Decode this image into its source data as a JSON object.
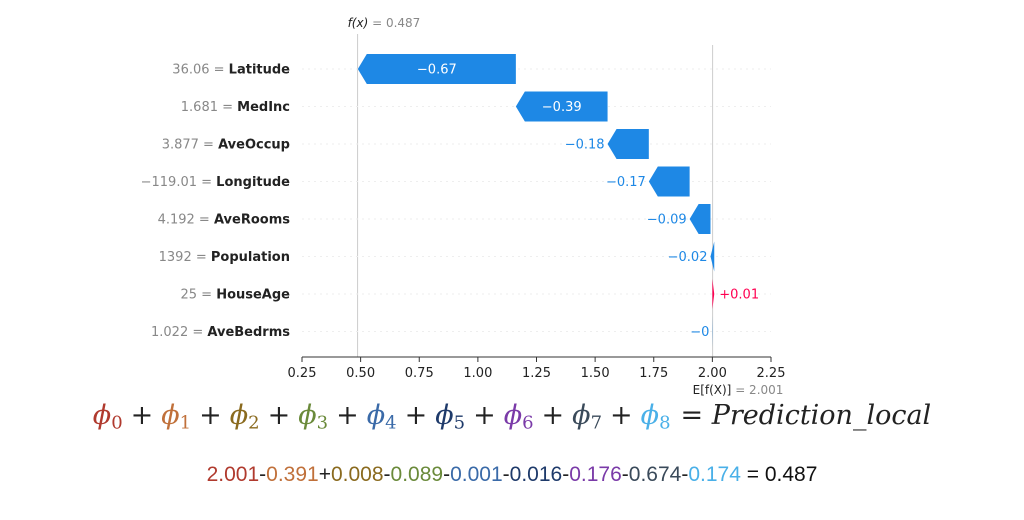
{
  "chart_data": {
    "type": "waterfall",
    "xlim": [
      0.25,
      2.25
    ],
    "xticks": [
      "0.25",
      "0.50",
      "0.75",
      "1.00",
      "1.25",
      "1.50",
      "1.75",
      "2.00",
      "2.25"
    ],
    "base_value": 2.001,
    "base_label": "E[f(X)]",
    "base_value_label": "= 2.001",
    "output_value": 0.487,
    "output_label": "f(x)",
    "output_value_label": "= 0.487",
    "features": [
      {
        "label": "36.06 = Latitude",
        "feature": "Latitude",
        "value": -0.674,
        "text": "−0.67"
      },
      {
        "label": "1.681 = MedInc",
        "feature": "MedInc",
        "value": -0.391,
        "text": "−0.39"
      },
      {
        "label": "3.877 = AveOccup",
        "feature": "AveOccup",
        "value": -0.176,
        "text": "−0.18"
      },
      {
        "label": "−119.01 = Longitude",
        "feature": "Longitude",
        "value": -0.174,
        "text": "−0.17"
      },
      {
        "label": "4.192 = AveRooms",
        "feature": "AveRooms",
        "value": -0.089,
        "text": "−0.09"
      },
      {
        "label": "1392 = Population",
        "feature": "Population",
        "value": -0.016,
        "text": "−0.02"
      },
      {
        "label": "25 = HouseAge",
        "feature": "HouseAge",
        "value": 0.008,
        "text": "+0.01"
      },
      {
        "label": "1.022 = AveBedrms",
        "feature": "AveBedrms",
        "value": -0.001,
        "text": "−0"
      }
    ],
    "colors": {
      "negative": "#1e88e5",
      "positive": "#ff0051",
      "axis": "#333333",
      "muted": "#888888"
    }
  },
  "formula": {
    "terms": [
      {
        "symbol": "ϕ",
        "sub": "0",
        "color": "#b03a2e"
      },
      {
        "symbol": "ϕ",
        "sub": "1",
        "color": "#c0703a"
      },
      {
        "symbol": "ϕ",
        "sub": "2",
        "color": "#8a6a1e"
      },
      {
        "symbol": "ϕ",
        "sub": "3",
        "color": "#6a8a3a"
      },
      {
        "symbol": "ϕ",
        "sub": "4",
        "color": "#3a6aa8"
      },
      {
        "symbol": "ϕ",
        "sub": "5",
        "color": "#1e3a6a"
      },
      {
        "symbol": "ϕ",
        "sub": "6",
        "color": "#7a3aa8"
      },
      {
        "symbol": "ϕ",
        "sub": "7",
        "color": "#3a4a5a"
      },
      {
        "symbol": "ϕ",
        "sub": "8",
        "color": "#4ab0e8"
      }
    ],
    "rhs": "= Prediction_local"
  },
  "equation": {
    "parts": [
      {
        "text": "2.001",
        "color": "#b03a2e"
      },
      {
        "text": "-",
        "color": "#222222"
      },
      {
        "text": "0.391",
        "color": "#c0703a"
      },
      {
        "text": "+",
        "color": "#222222"
      },
      {
        "text": "0.008",
        "color": "#8a6a1e"
      },
      {
        "text": "-",
        "color": "#222222"
      },
      {
        "text": "0.089",
        "color": "#6a8a3a"
      },
      {
        "text": "-",
        "color": "#222222"
      },
      {
        "text": "0.001",
        "color": "#3a6aa8"
      },
      {
        "text": "-",
        "color": "#222222"
      },
      {
        "text": "0.016",
        "color": "#1e3a6a"
      },
      {
        "text": "-",
        "color": "#222222"
      },
      {
        "text": "0.176",
        "color": "#7a3aa8"
      },
      {
        "text": "-",
        "color": "#222222"
      },
      {
        "text": "0.674",
        "color": "#3a4a5a"
      },
      {
        "text": "-",
        "color": "#222222"
      },
      {
        "text": "0.174",
        "color": "#4ab0e8"
      },
      {
        "text": " = 0.487",
        "color": "#111111"
      }
    ]
  }
}
